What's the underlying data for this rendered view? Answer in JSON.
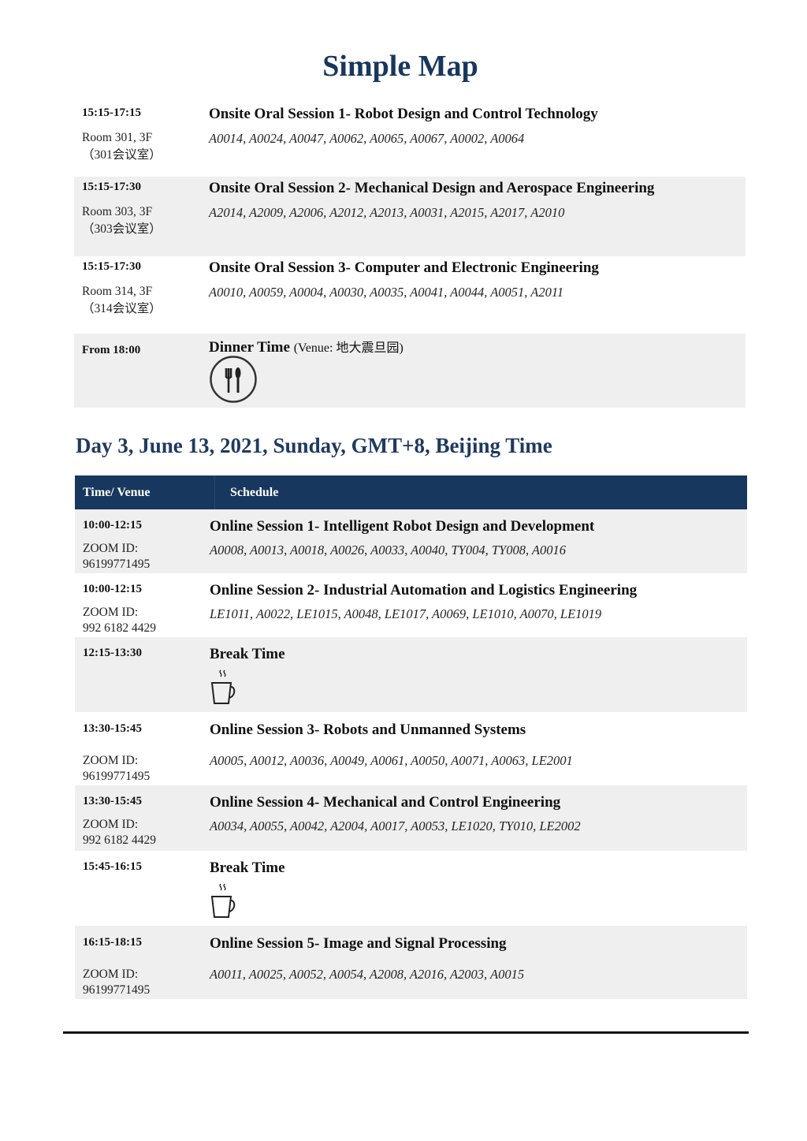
{
  "page_title": "Simple Map",
  "day2_rows": [
    {
      "time": "15:15-17:15",
      "venue": [
        "Room 301, 3F",
        "（301会议室）"
      ],
      "title": "Onsite Oral Session 1- Robot Design and Control Technology",
      "codes": "A0014, A0024, A0047, A0062, A0065, A0067, A0002, A0064",
      "shade": "white"
    },
    {
      "time": "15:15-17:30",
      "venue": [
        "Room 303, 3F",
        "（303会议室）"
      ],
      "title": "Onsite Oral Session 2- Mechanical Design and Aerospace Engineering",
      "codes": "A2014, A2009, A2006, A2012, A2013, A0031, A2015, A2017, A2010",
      "shade": "gray"
    },
    {
      "time": "15:15-17:30",
      "venue": [
        "Room 314, 3F",
        "（314会议室）"
      ],
      "title": "Onsite Oral Session 3- Computer and Electronic Engineering",
      "codes": "A0010, A0059, A0004, A0030, A0035, A0041, A0044, A0051, A2011",
      "shade": "white"
    },
    {
      "time": "From 18:00",
      "venue": [],
      "title": "Dinner Time",
      "title_note": "(Venue: 地大震旦园)",
      "codes": "",
      "icon": "utensils-icon",
      "shade": "gray"
    }
  ],
  "day3_heading": "Day 3, June 13, 2021, Sunday, GMT+8, Beijing Time",
  "table_header": {
    "col1": "Time/ Venue",
    "col2": "Schedule",
    "color": "#17375e"
  },
  "day3_rows": [
    {
      "time": "10:00-12:15",
      "venue": [
        "ZOOM ID:",
        "96199771495"
      ],
      "title": "Online Session 1- Intelligent Robot Design and Development",
      "codes": "A0008, A0013, A0018, A0026, A0033, A0040, TY004, TY008, A0016",
      "shade": "gray"
    },
    {
      "time": "10:00-12:15",
      "venue": [
        "ZOOM ID:",
        "992 6182 4429"
      ],
      "title": "Online Session 2- Industrial Automation and Logistics Engineering",
      "codes": "LE1011, A0022, LE1015, A0048, LE1017, A0069, LE1010, A0070, LE1019",
      "shade": "white"
    },
    {
      "time": "12:15-13:30",
      "venue": [],
      "title": "Break Time",
      "codes": "",
      "icon": "coffee-cup-icon",
      "shade": "gray"
    },
    {
      "time": "13:30-15:45",
      "venue": [
        "ZOOM ID:",
        "96199771495"
      ],
      "title": "Online Session 3- Robots and Unmanned Systems",
      "codes": "A0005, A0012, A0036, A0049, A0061, A0050, A0071, A0063, LE2001",
      "shade": "white"
    },
    {
      "time": "13:30-15:45",
      "venue": [
        "ZOOM ID:",
        "992 6182 4429"
      ],
      "title": "Online Session 4- Mechanical and Control Engineering",
      "codes": "A0034, A0055, A0042, A2004, A0017, A0053, LE1020, TY010, LE2002",
      "shade": "gray"
    },
    {
      "time": "15:45-16:15",
      "venue": [],
      "title": "Break Time",
      "codes": "",
      "icon": "coffee-cup-icon",
      "shade": "white"
    },
    {
      "time": "16:15-18:15",
      "venue": [
        "ZOOM ID:",
        "96199771495"
      ],
      "title": "Online Session 5- Image and Signal Processing",
      "codes": "A0011, A0025, A0052, A0054, A2008, A2016, A2003, A0015",
      "shade": "gray"
    }
  ]
}
